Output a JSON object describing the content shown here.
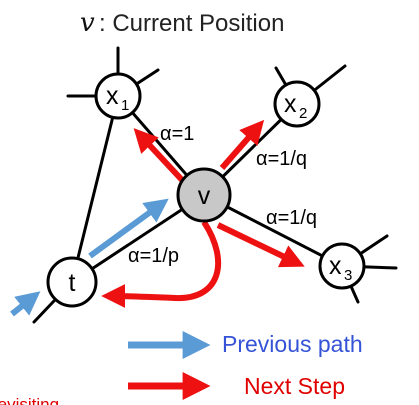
{
  "title": {
    "variable": "v",
    "text": ": Current Position"
  },
  "nodes": {
    "v": "v",
    "t": "t",
    "x1": {
      "base": "x",
      "sub": "1"
    },
    "x2": {
      "base": "x",
      "sub": "2"
    },
    "x3": {
      "base": "x",
      "sub": "3"
    }
  },
  "edge_labels": {
    "v_x1": "α=1",
    "v_x2": "α=1/q",
    "v_x3": "α=1/q",
    "v_t": "α=1/p"
  },
  "legend": {
    "previous": "Previous path",
    "next": "Next Step"
  },
  "cut_text": "revisiting",
  "colors": {
    "blue_arrow": "#5b9bd5",
    "red_arrow": "#ee1111",
    "node_v_fill": "#c8c8c8",
    "legend_blue_text": "#3553d6",
    "legend_red_text": "#e00000"
  }
}
